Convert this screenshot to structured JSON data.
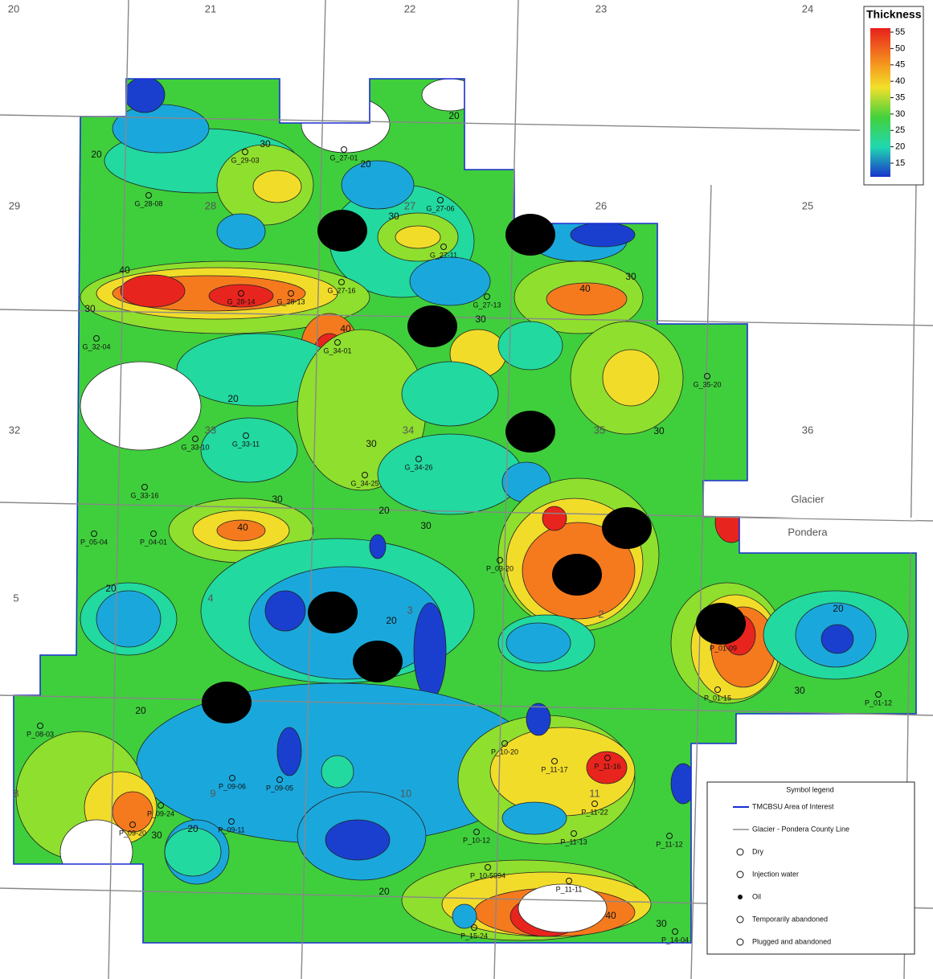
{
  "map": {
    "section_numbers": [
      "20",
      "21",
      "22",
      "23",
      "24",
      "29",
      "28",
      "27",
      "26",
      "25",
      "32",
      "33",
      "34",
      "35",
      "36",
      "5",
      "4",
      "3",
      "2",
      "8",
      "9",
      "10",
      "11",
      "12"
    ],
    "county_labels": [
      "Glacier",
      "Pondera"
    ],
    "wells": [
      "G_29-03",
      "G_27-01",
      "G_28-08",
      "G_27-06",
      "G_27-11",
      "G_28-14",
      "G_28-13",
      "G_27-16",
      "G_27-13",
      "G_32-04",
      "G_34-01",
      "G_35-20",
      "G_33-10",
      "G_33-11",
      "G_34-25",
      "G_34-26",
      "G_33-16",
      "P_05-04",
      "P_04-01",
      "P_03-20",
      "P_01-09",
      "P_01-15",
      "P_01-12",
      "P_08-03",
      "P_09-06",
      "P_09-05",
      "P_09-24",
      "P_09-11",
      "P_09-20",
      "P_10-20",
      "P_11-17",
      "P_11-16",
      "P_11-22",
      "P_11-13",
      "P_10-12",
      "P_11-12",
      "P_10-5994",
      "P_11-11",
      "P_15-24",
      "P_14-04"
    ],
    "contour_labels": [
      20,
      30,
      20,
      20,
      30,
      40,
      30,
      40,
      30,
      30,
      40,
      20,
      30,
      30,
      30,
      40,
      20,
      30,
      20,
      20,
      20,
      30,
      20,
      20,
      30,
      20,
      40,
      30
    ],
    "colorbar": {
      "title": "Thickness",
      "ticks": [
        55,
        50,
        45,
        40,
        35,
        30,
        25,
        20,
        15
      ]
    },
    "symbol_legend": {
      "title": "Symbol legend",
      "items": [
        "TMCBSU Area of Interest",
        "Glacier - Pondera County Line",
        "Dry",
        "Injection water",
        "Oil",
        "Temporarily abandoned",
        "Plugged and abandoned"
      ]
    }
  }
}
